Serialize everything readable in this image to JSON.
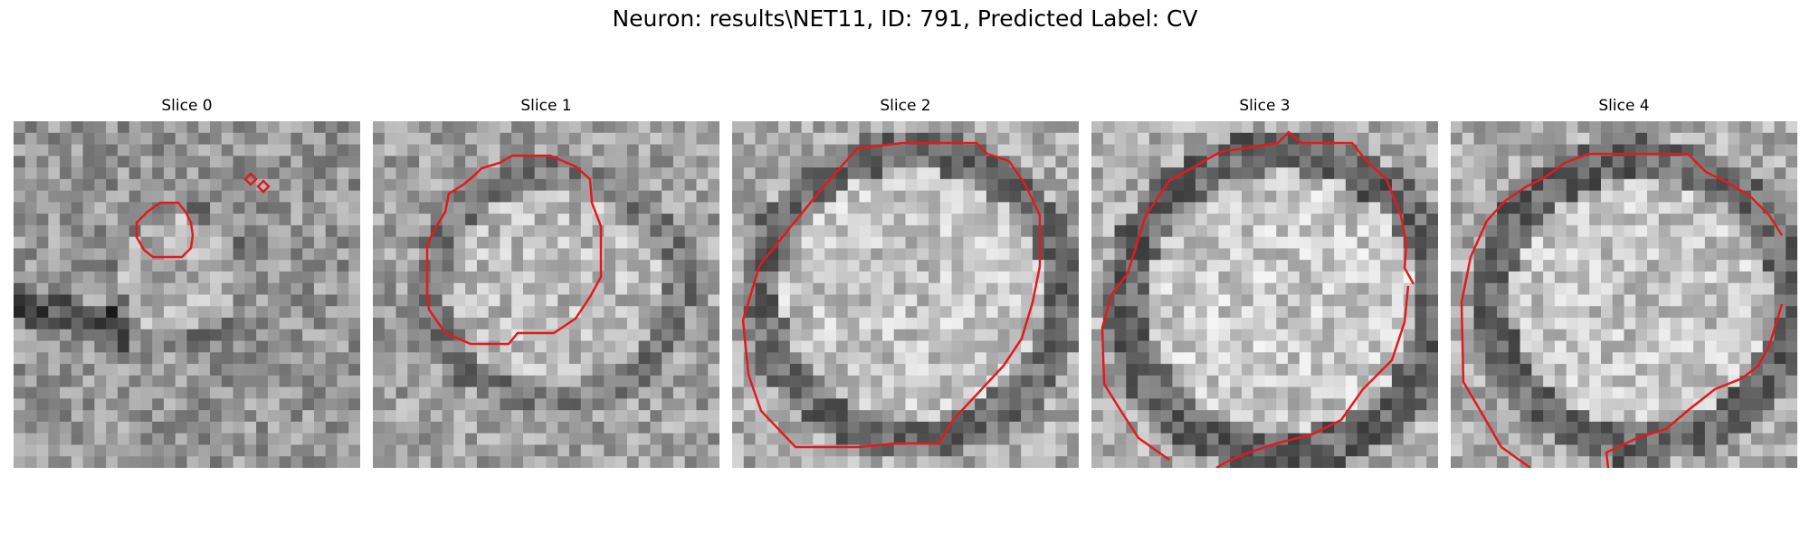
{
  "figure": {
    "title": "Neuron: results\\NET11, ID: 791, Predicted Label: CV",
    "contour_color": "#e31a1c",
    "colormap": "grayscale",
    "panels": [
      {
        "label": "Slice 0",
        "contour_coverage": 0.07
      },
      {
        "label": "Slice 1",
        "contour_coverage": 0.42
      },
      {
        "label": "Slice 2",
        "contour_coverage": 0.78
      },
      {
        "label": "Slice 3",
        "contour_coverage": 0.8
      },
      {
        "label": "Slice 4",
        "contour_coverage": 0.78
      }
    ]
  }
}
